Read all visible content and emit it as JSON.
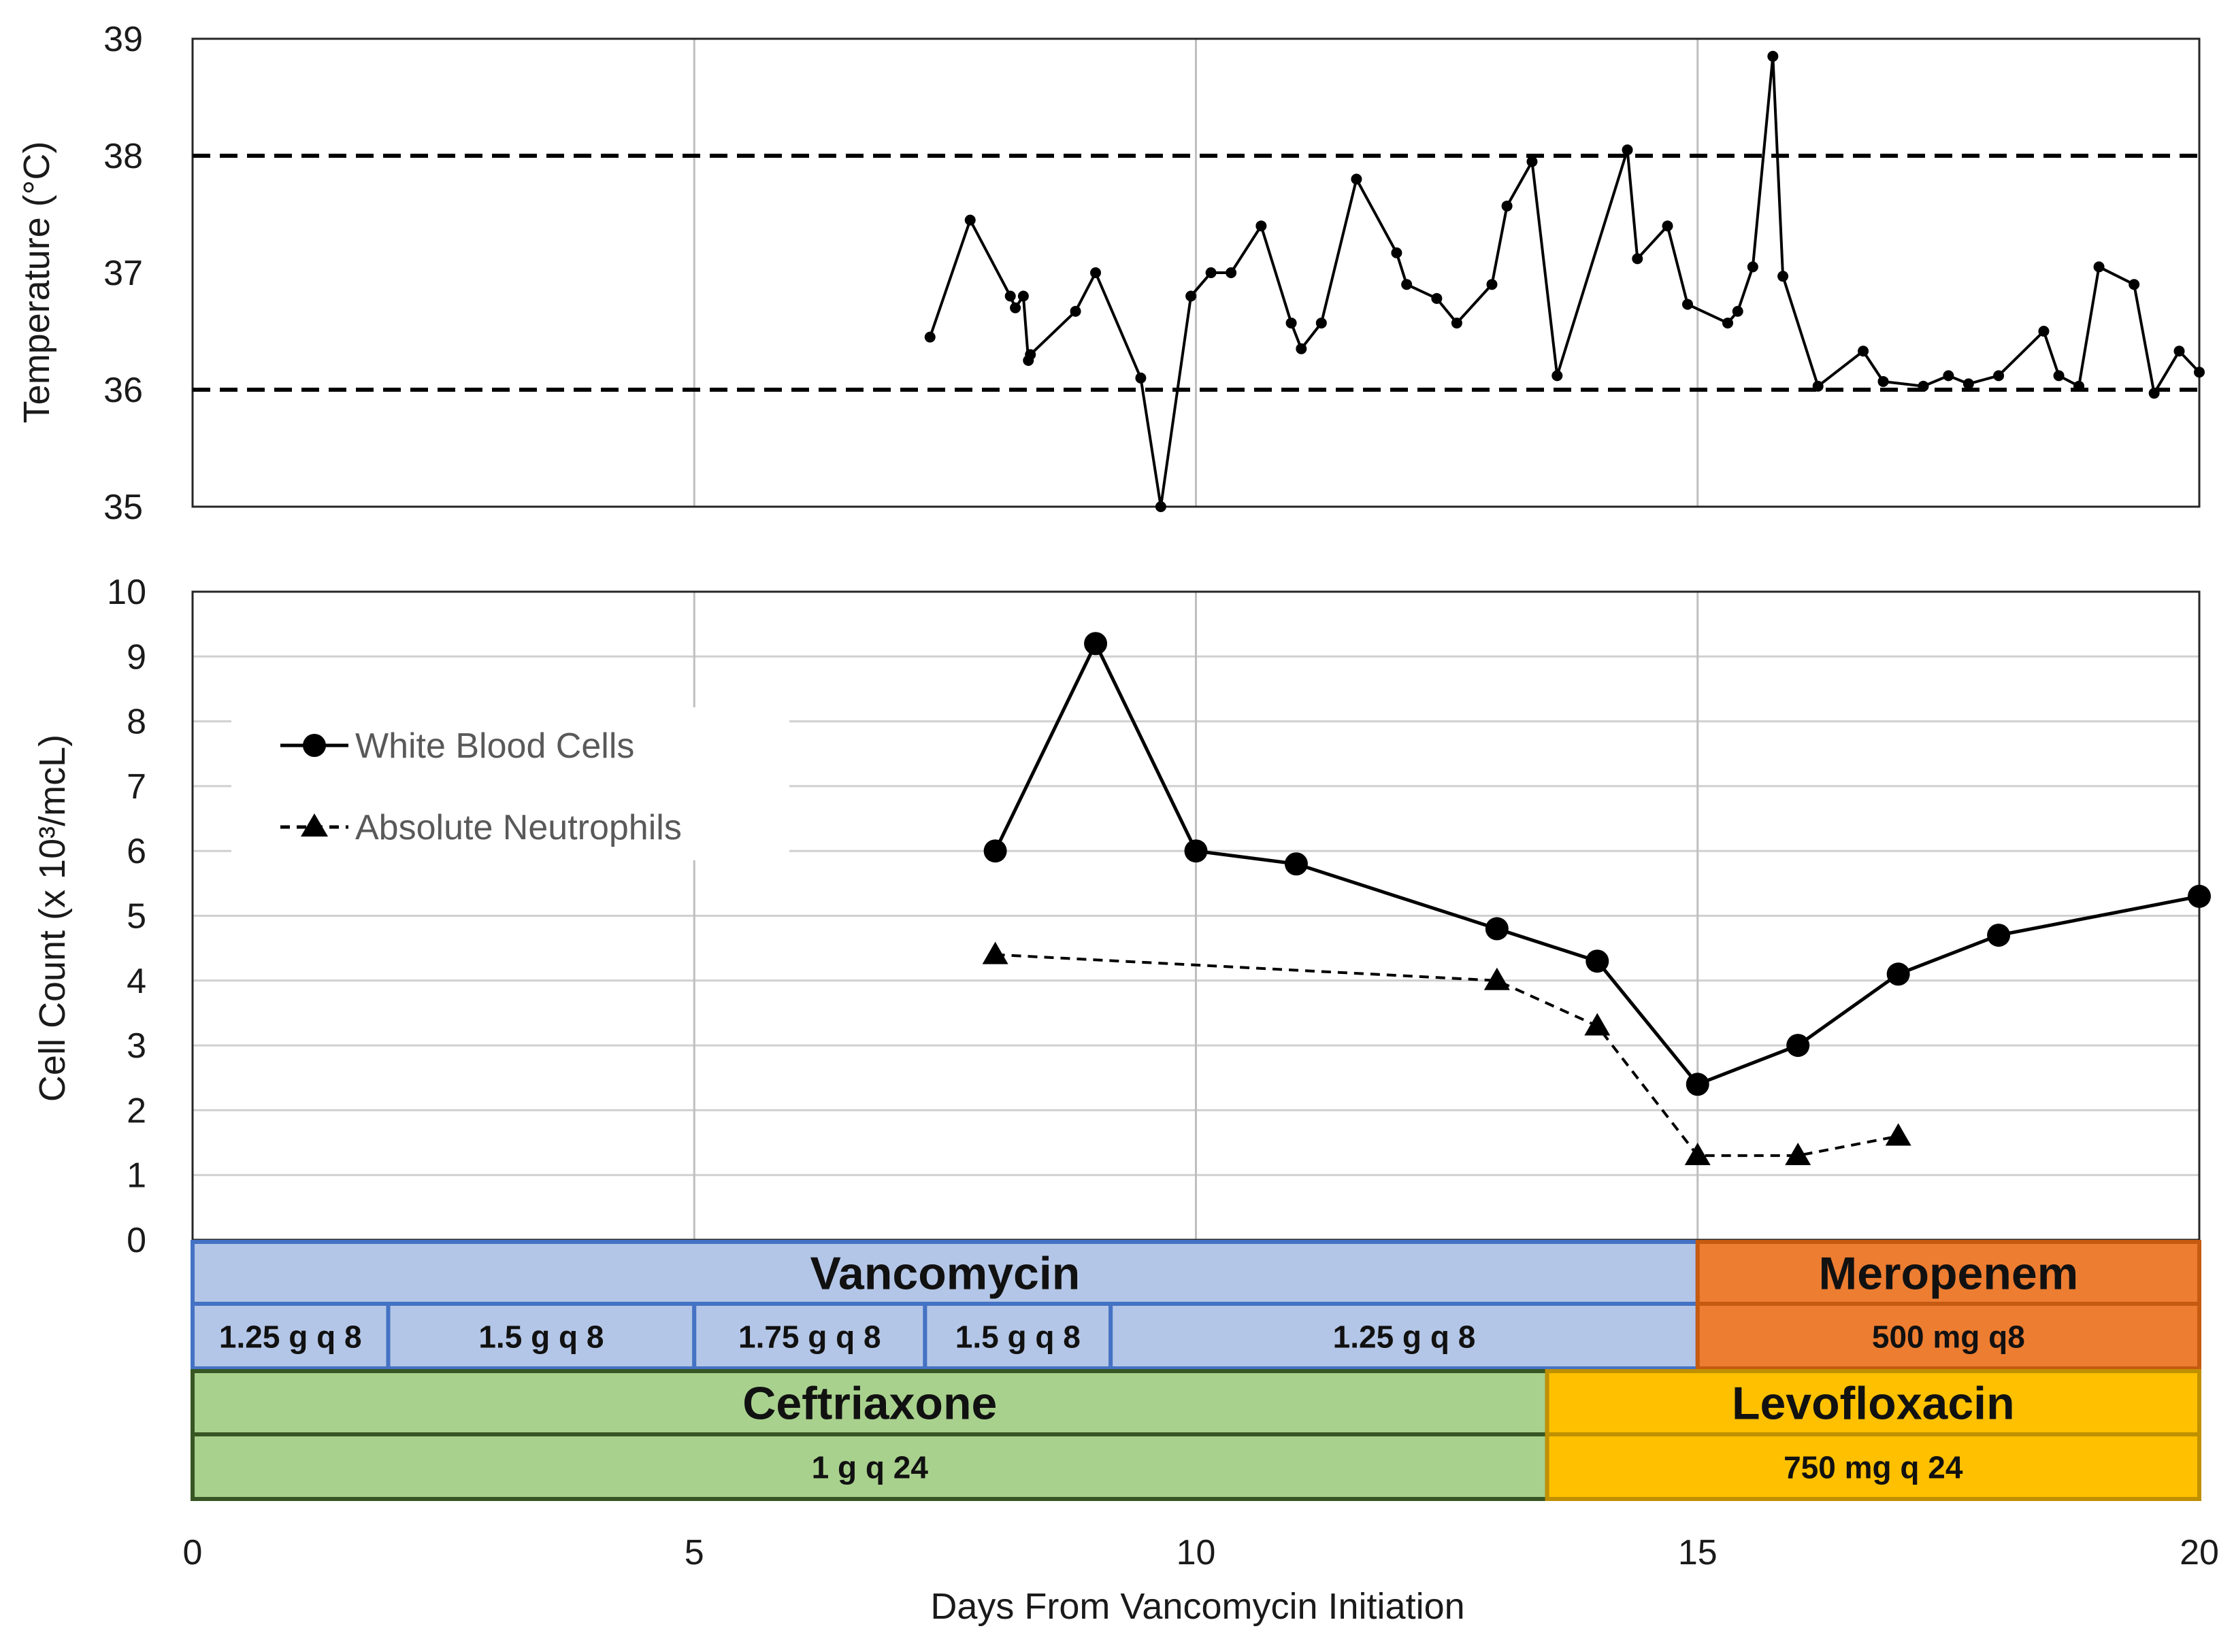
{
  "chart_data": [
    {
      "type": "line",
      "ylabel": "Temperature (°C)",
      "xlim": [
        0,
        20
      ],
      "ylim": [
        35,
        39
      ],
      "yticks": [
        35,
        36,
        37,
        38,
        39
      ],
      "grid": true,
      "reference_lines": [
        36,
        38
      ],
      "series": [
        {
          "x": [
            7.35,
            7.75,
            8.15,
            8.2,
            8.28,
            8.33,
            8.35,
            8.8,
            9.0,
            9.45,
            9.65,
            9.95,
            10.15,
            10.35,
            10.65,
            10.95,
            11.05,
            11.25,
            11.6,
            12.0,
            12.1,
            12.4,
            12.6,
            12.95,
            13.1,
            13.35,
            13.6,
            14.3,
            14.4,
            14.7,
            14.9,
            15.3,
            15.4,
            15.55,
            15.75,
            15.85,
            16.2,
            16.65,
            16.85,
            17.25,
            17.5,
            17.7,
            18.0,
            18.45,
            18.6,
            18.8,
            19.0,
            19.35,
            19.55,
            19.8,
            20.0
          ],
          "y": [
            36.45,
            37.45,
            36.8,
            36.7,
            36.8,
            36.25,
            36.3,
            36.67,
            37.0,
            36.1,
            35.0,
            36.8,
            37.0,
            37.0,
            37.4,
            36.57,
            36.35,
            36.57,
            37.8,
            37.17,
            36.9,
            36.78,
            36.57,
            36.9,
            37.57,
            37.95,
            36.12,
            38.05,
            37.12,
            37.4,
            36.73,
            36.57,
            36.67,
            37.05,
            38.85,
            36.97,
            36.03,
            36.33,
            36.07,
            36.03,
            36.12,
            36.05,
            36.12,
            36.5,
            36.12,
            36.03,
            37.05,
            36.9,
            35.97,
            36.33,
            36.15
          ]
        }
      ]
    },
    {
      "type": "line",
      "ylabel": "Cell Count (x 10³/mcL)",
      "xlabel": "Days From Vancomycin Initiation",
      "xlim": [
        0,
        20
      ],
      "ylim": [
        0,
        10
      ],
      "xticks": [
        0,
        5,
        10,
        15,
        20
      ],
      "yticks": [
        0,
        1,
        2,
        3,
        4,
        5,
        6,
        7,
        8,
        9,
        10
      ],
      "grid": true,
      "legend_position": "left",
      "series": [
        {
          "name": "White Blood Cells",
          "marker": "circle",
          "line": "solid",
          "x": [
            8,
            9,
            10,
            11,
            13,
            14,
            15,
            16,
            17,
            18,
            20
          ],
          "y": [
            6.0,
            9.2,
            6.0,
            5.8,
            4.8,
            4.3,
            2.4,
            3.0,
            4.1,
            4.7,
            5.3
          ]
        },
        {
          "name": "Absolute Neutrophils",
          "marker": "triangle",
          "line": "dashed",
          "x": [
            8,
            13,
            14,
            15,
            16,
            17
          ],
          "y": [
            4.4,
            4.0,
            3.3,
            1.3,
            1.3,
            1.6
          ]
        }
      ]
    }
  ],
  "therapy": {
    "colors": {
      "vanc_fill": "#b4c6e7",
      "vanc_border": "#4472c4",
      "mero_fill": "#ed7d31",
      "mero_border": "#c55a11",
      "cef_fill": "#a9d18e",
      "cef_border": "#375623",
      "levo_fill": "#ffc000",
      "levo_border": "#bf9000"
    },
    "drugs": [
      {
        "name": "Vancomycin",
        "start": 0,
        "end": 15,
        "row": 0,
        "doses": [
          {
            "label": "1.25 g q 8",
            "start": 0,
            "end": 1.95
          },
          {
            "label": "1.5 g q 8",
            "start": 1.95,
            "end": 5
          },
          {
            "label": "1.75 g q 8",
            "start": 5,
            "end": 7.3
          },
          {
            "label": "1.5 g q 8",
            "start": 7.3,
            "end": 9.15
          },
          {
            "label": "1.25 g q 8",
            "start": 9.15,
            "end": 15
          }
        ]
      },
      {
        "name": "Meropenem",
        "start": 15,
        "end": 20,
        "row": 0,
        "doses": [
          {
            "label": "500 mg q8",
            "start": 15,
            "end": 20
          }
        ]
      },
      {
        "name": "Ceftriaxone",
        "start": 0,
        "end": 13.5,
        "row": 1,
        "doses": [
          {
            "label": "1 g q 24",
            "start": 0,
            "end": 13.5
          }
        ]
      },
      {
        "name": "Levofloxacin",
        "start": 13.5,
        "end": 20,
        "row": 1,
        "doses": [
          {
            "label": "750 mg q 24",
            "start": 13.5,
            "end": 20
          }
        ]
      }
    ]
  }
}
